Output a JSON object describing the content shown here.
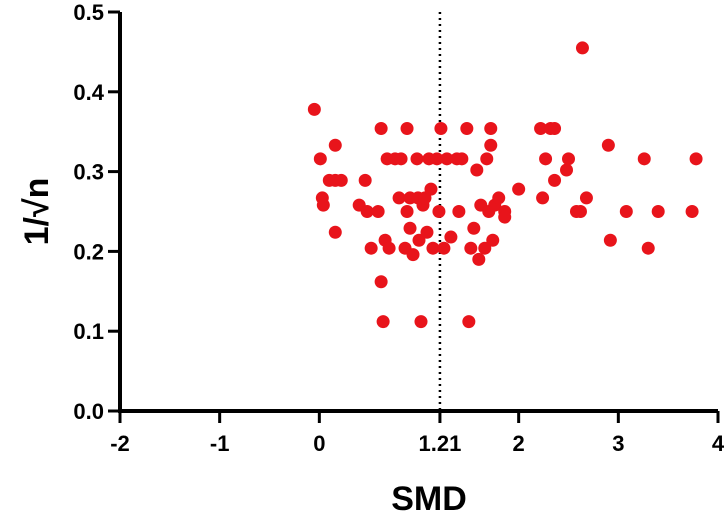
{
  "chart_data": {
    "type": "scatter",
    "xlabel": "SMD",
    "ylabel": "1/√n",
    "xlim": [
      -2,
      4
    ],
    "ylim": [
      0,
      0.5
    ],
    "x_ticks": [
      -2,
      -1,
      0,
      1.21,
      2,
      3,
      4
    ],
    "x_tick_labels": [
      "-2",
      "-1",
      "0",
      "1.21",
      "2",
      "3",
      "4"
    ],
    "y_ticks": [
      0.0,
      0.1,
      0.2,
      0.3,
      0.4,
      0.5
    ],
    "y_tick_labels": [
      "0.0",
      "0.1",
      "0.2",
      "0.3",
      "0.4",
      "0.5"
    ],
    "reference_line": {
      "x": 1.21,
      "style": "dotted"
    },
    "point_color": "#e8141b",
    "grid": false,
    "points": [
      {
        "x": -0.05,
        "y": 0.378
      },
      {
        "x": 0.03,
        "y": 0.267
      },
      {
        "x": 0.01,
        "y": 0.316
      },
      {
        "x": 0.04,
        "y": 0.258
      },
      {
        "x": 0.1,
        "y": 0.289
      },
      {
        "x": 0.16,
        "y": 0.289
      },
      {
        "x": 0.16,
        "y": 0.333
      },
      {
        "x": 0.16,
        "y": 0.224
      },
      {
        "x": 0.22,
        "y": 0.289
      },
      {
        "x": 0.4,
        "y": 0.258
      },
      {
        "x": 0.46,
        "y": 0.289
      },
      {
        "x": 0.48,
        "y": 0.25
      },
      {
        "x": 0.52,
        "y": 0.204
      },
      {
        "x": 0.59,
        "y": 0.25
      },
      {
        "x": 0.62,
        "y": 0.354
      },
      {
        "x": 0.62,
        "y": 0.162
      },
      {
        "x": 0.64,
        "y": 0.112
      },
      {
        "x": 0.66,
        "y": 0.214
      },
      {
        "x": 0.68,
        "y": 0.316
      },
      {
        "x": 0.7,
        "y": 0.204
      },
      {
        "x": 0.76,
        "y": 0.316
      },
      {
        "x": 0.8,
        "y": 0.267
      },
      {
        "x": 0.82,
        "y": 0.316
      },
      {
        "x": 0.86,
        "y": 0.204
      },
      {
        "x": 0.88,
        "y": 0.354
      },
      {
        "x": 0.88,
        "y": 0.25
      },
      {
        "x": 0.91,
        "y": 0.267
      },
      {
        "x": 0.91,
        "y": 0.229
      },
      {
        "x": 0.94,
        "y": 0.196
      },
      {
        "x": 0.98,
        "y": 0.316
      },
      {
        "x": 0.99,
        "y": 0.267
      },
      {
        "x": 1.0,
        "y": 0.214
      },
      {
        "x": 1.02,
        "y": 0.112
      },
      {
        "x": 1.04,
        "y": 0.258
      },
      {
        "x": 1.06,
        "y": 0.267
      },
      {
        "x": 1.08,
        "y": 0.224
      },
      {
        "x": 1.1,
        "y": 0.316
      },
      {
        "x": 1.12,
        "y": 0.278
      },
      {
        "x": 1.14,
        "y": 0.204
      },
      {
        "x": 1.18,
        "y": 0.316
      },
      {
        "x": 1.2,
        "y": 0.25
      },
      {
        "x": 1.22,
        "y": 0.354
      },
      {
        "x": 1.25,
        "y": 0.204
      },
      {
        "x": 1.28,
        "y": 0.316
      },
      {
        "x": 1.32,
        "y": 0.218
      },
      {
        "x": 1.38,
        "y": 0.316
      },
      {
        "x": 1.4,
        "y": 0.25
      },
      {
        "x": 1.43,
        "y": 0.316
      },
      {
        "x": 1.48,
        "y": 0.354
      },
      {
        "x": 1.5,
        "y": 0.112
      },
      {
        "x": 1.52,
        "y": 0.204
      },
      {
        "x": 1.55,
        "y": 0.229
      },
      {
        "x": 1.58,
        "y": 0.302
      },
      {
        "x": 1.6,
        "y": 0.19
      },
      {
        "x": 1.62,
        "y": 0.258
      },
      {
        "x": 1.66,
        "y": 0.204
      },
      {
        "x": 1.68,
        "y": 0.316
      },
      {
        "x": 1.7,
        "y": 0.25
      },
      {
        "x": 1.72,
        "y": 0.333
      },
      {
        "x": 1.72,
        "y": 0.354
      },
      {
        "x": 1.74,
        "y": 0.214
      },
      {
        "x": 1.76,
        "y": 0.258
      },
      {
        "x": 1.8,
        "y": 0.267
      },
      {
        "x": 1.86,
        "y": 0.25
      },
      {
        "x": 1.86,
        "y": 0.243
      },
      {
        "x": 2.0,
        "y": 0.278
      },
      {
        "x": 2.22,
        "y": 0.354
      },
      {
        "x": 2.24,
        "y": 0.267
      },
      {
        "x": 2.27,
        "y": 0.316
      },
      {
        "x": 2.32,
        "y": 0.354
      },
      {
        "x": 2.36,
        "y": 0.354
      },
      {
        "x": 2.36,
        "y": 0.289
      },
      {
        "x": 2.48,
        "y": 0.302
      },
      {
        "x": 2.5,
        "y": 0.316
      },
      {
        "x": 2.58,
        "y": 0.25
      },
      {
        "x": 2.62,
        "y": 0.25
      },
      {
        "x": 2.64,
        "y": 0.455
      },
      {
        "x": 2.68,
        "y": 0.267
      },
      {
        "x": 2.9,
        "y": 0.333
      },
      {
        "x": 2.92,
        "y": 0.214
      },
      {
        "x": 3.08,
        "y": 0.25
      },
      {
        "x": 3.26,
        "y": 0.316
      },
      {
        "x": 3.3,
        "y": 0.204
      },
      {
        "x": 3.4,
        "y": 0.25
      },
      {
        "x": 3.74,
        "y": 0.25
      },
      {
        "x": 3.78,
        "y": 0.316
      }
    ]
  }
}
